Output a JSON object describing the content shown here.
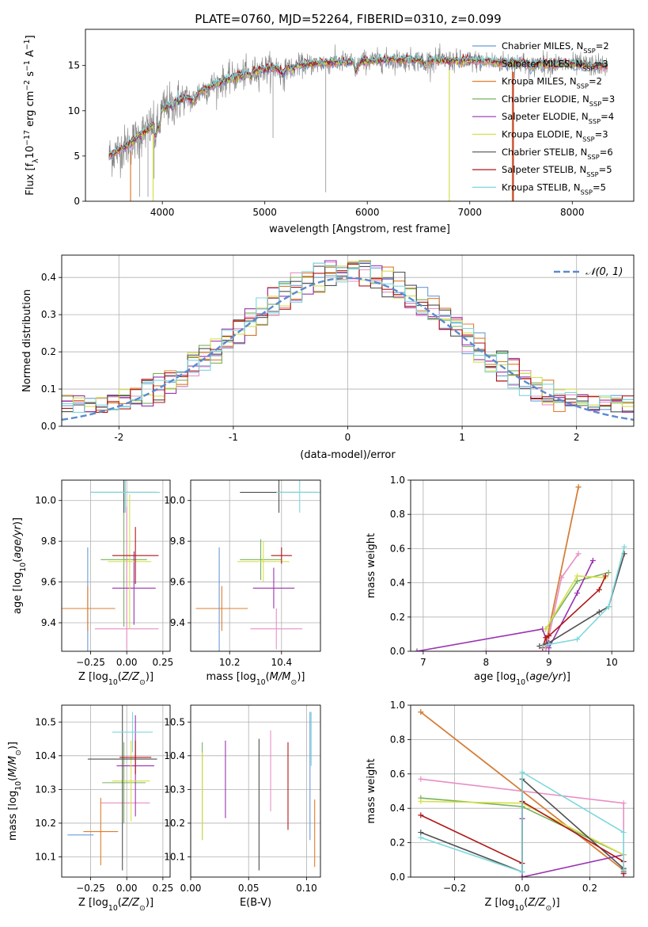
{
  "title": "PLATE=0760, MJD=52264, FIBERID=0310, z=0.099",
  "colors": {
    "Chabrier MILES": "#6a9bd8",
    "Salpeter MILES": "#e88fc4",
    "Kroupa MILES": "#e07c2a",
    "Chabrier ELODIE": "#7ab25c",
    "Salpeter ELODIE": "#9933b0",
    "Kroupa ELODIE": "#d6e04a",
    "Chabrier STELIB": "#505050",
    "Salpeter STELIB": "#b01717",
    "Kroupa STELIB": "#7dd8dc",
    "data": "#808080",
    "gauss": "#5b8ad0"
  },
  "chart_data": [
    {
      "id": "spectrum",
      "type": "line",
      "xlabel": "wavelength [Angstrom, rest frame]",
      "ylabel": "Flux [f_λ10^-17 erg cm^-2 s^-1 A^-1]",
      "xlim": [
        3250,
        8600
      ],
      "ylim": [
        0,
        19
      ],
      "xticks": [
        4000,
        5000,
        6000,
        7000,
        8000
      ],
      "yticks": [
        0,
        5,
        10,
        15
      ],
      "legend_position": "upper-right",
      "legend": [
        {
          "text": "Chabrier MILES, N",
          "sub": "SSP",
          "suffix": "=2"
        },
        {
          "text": "Salpeter MILES, N",
          "sub": "SSP",
          "suffix": "=3"
        },
        {
          "text": "Kroupa MILES, N",
          "sub": "SSP",
          "suffix": "=2"
        },
        {
          "text": "Chabrier ELODIE, N",
          "sub": "SSP",
          "suffix": "=3"
        },
        {
          "text": "Salpeter ELODIE, N",
          "sub": "SSP",
          "suffix": "=4"
        },
        {
          "text": "Kroupa ELODIE, N",
          "sub": "SSP",
          "suffix": "=3"
        },
        {
          "text": "Chabrier STELIB, N",
          "sub": "SSP",
          "suffix": "=6"
        },
        {
          "text": "Salpeter STELIB, N",
          "sub": "SSP",
          "suffix": "=5"
        },
        {
          "text": "Kroupa STELIB, N",
          "sub": "SSP",
          "suffix": "=5"
        }
      ],
      "continuum": {
        "x": [
          3480,
          3600,
          3700,
          3800,
          3900,
          4000,
          4100,
          4200,
          4300,
          4400,
          4500,
          4600,
          4800,
          5000,
          5200,
          5400,
          5600,
          5800,
          6000,
          6200,
          6400,
          6600,
          6800,
          7000,
          7200,
          7400,
          7600,
          7800,
          8000,
          8200,
          8350
        ],
        "y": [
          5.0,
          5.8,
          6.5,
          7.4,
          8.3,
          10.2,
          10.8,
          11.3,
          11.8,
          12.3,
          12.8,
          13.3,
          14.0,
          14.6,
          14.9,
          15.1,
          15.3,
          15.4,
          15.5,
          15.6,
          15.6,
          15.6,
          15.5,
          15.5,
          15.4,
          15.3,
          15.3,
          15.2,
          15.1,
          15.0,
          15.0
        ]
      }
    },
    {
      "id": "residuals",
      "type": "histogram",
      "xlabel": "(data-model)/error",
      "ylabel": "Normed distribution",
      "xlim": [
        -2.5,
        2.5
      ],
      "ylim": [
        0,
        0.46
      ],
      "xticks": [
        -2,
        -1,
        0,
        1,
        2
      ],
      "yticks": [
        0.0,
        0.1,
        0.2,
        0.3,
        0.4
      ],
      "legend": "𝒩(0, 1)",
      "legend_position": "upper-right",
      "bin_width": 0.1
    },
    {
      "id": "age-vs-Z",
      "type": "errorbar",
      "xlabel": "Z [log10(Z/Z⊙)]",
      "ylabel": "age  [log10(age/yr)]",
      "xlim": [
        -0.45,
        0.3
      ],
      "ylim": [
        9.26,
        10.1
      ],
      "xticks": [
        -0.25,
        0.0,
        0.25
      ],
      "yticks": [
        9.4,
        9.6,
        9.8,
        10.0
      ],
      "points": [
        {
          "model": "Chabrier MILES",
          "x": -0.27,
          "xerr": 0.12,
          "y": 9.47,
          "yerr": 0.3
        },
        {
          "model": "Salpeter MILES",
          "x": 0.0,
          "xerr": 0.22,
          "y": 9.37,
          "yerr": 0.6
        },
        {
          "model": "Kroupa MILES",
          "x": -0.27,
          "xerr": 0.19,
          "y": 9.47,
          "yerr": 0.11
        },
        {
          "model": "Chabrier ELODIE",
          "x": -0.02,
          "xerr": 0.16,
          "y": 9.71,
          "yerr": 0.33
        },
        {
          "model": "Salpeter ELODIE",
          "x": 0.05,
          "xerr": 0.15,
          "y": 9.57,
          "yerr": 0.18
        },
        {
          "model": "Kroupa ELODIE",
          "x": 0.02,
          "xerr": 0.15,
          "y": 9.7,
          "yerr": 0.33
        },
        {
          "model": "Chabrier STELIB",
          "x": -0.02,
          "xerr": 0.23,
          "y": 10.04,
          "yerr": 0.1
        },
        {
          "model": "Salpeter STELIB",
          "x": 0.06,
          "xerr": 0.16,
          "y": 9.73,
          "yerr": 0.14
        },
        {
          "model": "Kroupa STELIB",
          "x": -0.01,
          "xerr": 0.24,
          "y": 10.04,
          "yerr": 0.1
        }
      ]
    },
    {
      "id": "age-vs-mass",
      "type": "errorbar",
      "xlabel": "mass [log10(M/M⊙)]",
      "ylabel": "",
      "xlim": [
        10.05,
        10.55
      ],
      "ylim": [
        9.26,
        10.1
      ],
      "xticks": [
        10.2,
        10.4
      ],
      "yticks": [
        9.4,
        9.6,
        9.8,
        10.0
      ],
      "points": [
        {
          "model": "Chabrier MILES",
          "x": 10.16,
          "xerr": 0.08,
          "y": 9.47,
          "yerr": 0.3
        },
        {
          "model": "Salpeter MILES",
          "x": 10.38,
          "xerr": 0.1,
          "y": 9.37,
          "yerr": 0.1
        },
        {
          "model": "Kroupa MILES",
          "x": 10.17,
          "xerr": 0.1,
          "y": 9.47,
          "yerr": 0.11
        },
        {
          "model": "Chabrier ELODIE",
          "x": 10.32,
          "xerr": 0.08,
          "y": 9.71,
          "yerr": 0.1
        },
        {
          "model": "Salpeter ELODIE",
          "x": 10.37,
          "xerr": 0.08,
          "y": 9.57,
          "yerr": 0.1
        },
        {
          "model": "Kroupa ELODIE",
          "x": 10.33,
          "xerr": 0.1,
          "y": 9.7,
          "yerr": 0.1
        },
        {
          "model": "Chabrier STELIB",
          "x": 10.39,
          "xerr": 0.15,
          "y": 10.04,
          "yerr": 0.1
        },
        {
          "model": "Salpeter STELIB",
          "x": 10.4,
          "xerr": 0.04,
          "y": 9.73,
          "yerr": 0.04
        },
        {
          "model": "Kroupa STELIB",
          "x": 10.47,
          "xerr": 0.09,
          "y": 10.04,
          "yerr": 0.1
        }
      ]
    },
    {
      "id": "weight-vs-age",
      "type": "line",
      "xlabel": "age  [log10(age/yr)]",
      "ylabel": "mass weight",
      "xlim": [
        6.8,
        10.35
      ],
      "ylim": [
        0,
        1
      ],
      "xticks": [
        7,
        8,
        9,
        10
      ],
      "yticks": [
        0.0,
        0.2,
        0.4,
        0.6,
        0.8,
        1.0
      ],
      "series": [
        {
          "model": "Chabrier MILES",
          "x": [
            8.95,
            9.47
          ],
          "y": [
            0.04,
            0.96
          ]
        },
        {
          "model": "Salpeter MILES",
          "x": [
            8.0,
            8.95,
            9.2,
            9.47
          ],
          "y": [
            0.0,
            0.0,
            0.43,
            0.57
          ]
        },
        {
          "model": "Kroupa MILES",
          "x": [
            8.95,
            9.47
          ],
          "y": [
            0.04,
            0.96
          ]
        },
        {
          "model": "Chabrier ELODIE",
          "x": [
            8.95,
            9.45,
            9.95
          ],
          "y": [
            0.13,
            0.41,
            0.46
          ]
        },
        {
          "model": "Salpeter ELODIE",
          "x": [
            6.9,
            8.9,
            9.0,
            9.45,
            9.7
          ],
          "y": [
            0.0,
            0.13,
            0.02,
            0.34,
            0.53
          ]
        },
        {
          "model": "Kroupa ELODIE",
          "x": [
            8.95,
            9.45,
            9.9
          ],
          "y": [
            0.13,
            0.44,
            0.43
          ]
        },
        {
          "model": "Chabrier STELIB",
          "x": [
            8.85,
            9.0,
            9.8,
            9.95,
            10.2
          ],
          "y": [
            0.03,
            0.05,
            0.23,
            0.26,
            0.57
          ]
        },
        {
          "model": "Salpeter STELIB",
          "x": [
            8.9,
            8.95,
            9.0,
            9.8,
            9.9
          ],
          "y": [
            0.02,
            0.08,
            0.09,
            0.36,
            0.44
          ]
        },
        {
          "model": "Kroupa STELIB",
          "x": [
            8.9,
            9.0,
            9.45,
            9.95,
            10.2
          ],
          "y": [
            0.03,
            0.04,
            0.07,
            0.26,
            0.61
          ]
        }
      ]
    },
    {
      "id": "mass-vs-Z",
      "type": "errorbar",
      "xlabel": "Z [log10(Z/Z⊙)]",
      "ylabel": "mass [log10(M/M⊙)]",
      "xlim": [
        -0.45,
        0.3
      ],
      "ylim": [
        10.04,
        10.55
      ],
      "xticks": [
        -0.25,
        0.0,
        0.25
      ],
      "yticks": [
        10.1,
        10.2,
        10.3,
        10.4,
        10.5
      ],
      "points": [
        {
          "model": "Chabrier MILES",
          "x": -0.32,
          "xerr": 0.09,
          "y": 10.165,
          "yerr": 0.0
        },
        {
          "model": "Salpeter MILES",
          "x": -0.01,
          "xerr": 0.17,
          "y": 10.26,
          "yerr": 0.0
        },
        {
          "model": "Kroupa MILES",
          "x": -0.18,
          "xerr": 0.12,
          "y": 10.175,
          "yerr": 0.1
        },
        {
          "model": "Chabrier ELODIE",
          "x": -0.02,
          "xerr": 0.15,
          "y": 10.32,
          "yerr": 0.12
        },
        {
          "model": "Salpeter ELODIE",
          "x": 0.06,
          "xerr": 0.13,
          "y": 10.37,
          "yerr": 0.15
        },
        {
          "model": "Kroupa ELODIE",
          "x": 0.03,
          "xerr": 0.13,
          "y": 10.325,
          "yerr": 0.12
        },
        {
          "model": "Chabrier STELIB",
          "x": -0.03,
          "xerr": 0.24,
          "y": 10.39,
          "yerr": 0.33
        },
        {
          "model": "Salpeter STELIB",
          "x": 0.06,
          "xerr": 0.11,
          "y": 10.395,
          "yerr": 0.05
        },
        {
          "model": "Kroupa STELIB",
          "x": 0.04,
          "xerr": 0.14,
          "y": 10.47,
          "yerr": 0.06
        }
      ]
    },
    {
      "id": "mass-vs-EBV",
      "type": "errorbar",
      "xlabel": "E(B-V)",
      "ylabel": "",
      "xlim": [
        0.0,
        0.112
      ],
      "ylim": [
        10.04,
        10.55
      ],
      "xticks": [
        0.0,
        0.05,
        0.1
      ],
      "yticks": [
        10.1,
        10.2,
        10.3,
        10.4,
        10.5
      ],
      "points": [
        {
          "model": "Chabrier MILES",
          "x": 0.103,
          "xerr": 0.0,
          "y": 10.34,
          "yerr": 0.19
        },
        {
          "model": "Salpeter MILES",
          "x": 0.069,
          "xerr": 0.0,
          "y": 10.355,
          "yerr": 0.12
        },
        {
          "model": "Kroupa MILES",
          "x": 0.107,
          "xerr": 0.0,
          "y": 10.17,
          "yerr": 0.1
        },
        {
          "model": "Chabrier ELODIE",
          "x": 0.01,
          "xerr": 0.0,
          "y": 10.295,
          "yerr": 0.145
        },
        {
          "model": "Salpeter ELODIE",
          "x": 0.03,
          "xerr": 0.0,
          "y": 10.33,
          "yerr": 0.115
        },
        {
          "model": "Kroupa ELODIE",
          "x": 0.01,
          "xerr": 0.0,
          "y": 10.28,
          "yerr": 0.13
        },
        {
          "model": "Chabrier STELIB",
          "x": 0.059,
          "xerr": 0.0,
          "y": 10.255,
          "yerr": 0.195
        },
        {
          "model": "Salpeter STELIB",
          "x": 0.084,
          "xerr": 0.0,
          "y": 10.31,
          "yerr": 0.13
        },
        {
          "model": "Kroupa STELIB",
          "x": 0.104,
          "xerr": 0.0,
          "y": 10.45,
          "yerr": 0.08
        }
      ]
    },
    {
      "id": "weight-vs-Z",
      "type": "line",
      "xlabel": "Z [log10(Z/Z⊙)]",
      "ylabel": "mass weight",
      "xlim": [
        -0.33,
        0.33
      ],
      "ylim": [
        0,
        1
      ],
      "xticks": [
        -0.2,
        0.0,
        0.2
      ],
      "yticks": [
        0.0,
        0.2,
        0.4,
        0.6,
        0.8,
        1.0
      ],
      "series": [
        {
          "model": "Chabrier MILES",
          "x": [
            -0.3,
            0.3
          ],
          "y": [
            0.96,
            0.04
          ]
        },
        {
          "model": "Salpeter MILES",
          "x": [
            -0.3,
            0.0,
            0.3,
            0.3
          ],
          "y": [
            0.57,
            0.5,
            0.43,
            0.0
          ]
        },
        {
          "model": "Kroupa MILES",
          "x": [
            -0.3,
            0.3
          ],
          "y": [
            0.96,
            0.04
          ]
        },
        {
          "model": "Chabrier ELODIE",
          "x": [
            -0.3,
            0.0,
            0.3
          ],
          "y": [
            0.46,
            0.41,
            0.13
          ]
        },
        {
          "model": "Salpeter ELODIE",
          "x": [
            0.0,
            0.0,
            0.3
          ],
          "y": [
            0.34,
            0.0,
            0.13
          ]
        },
        {
          "model": "Kroupa ELODIE",
          "x": [
            -0.3,
            0.0,
            0.3
          ],
          "y": [
            0.44,
            0.43,
            0.13
          ]
        },
        {
          "model": "Chabrier STELIB",
          "x": [
            -0.3,
            0.0,
            0.0,
            0.3,
            0.3
          ],
          "y": [
            0.26,
            0.03,
            0.57,
            0.05,
            0.03
          ]
        },
        {
          "model": "Salpeter STELIB",
          "x": [
            -0.3,
            0.0,
            0.0,
            0.3,
            0.3
          ],
          "y": [
            0.36,
            0.08,
            0.44,
            0.09,
            0.02
          ]
        },
        {
          "model": "Kroupa STELIB",
          "x": [
            -0.3,
            0.0,
            0.0,
            0.3,
            0.3
          ],
          "y": [
            0.23,
            0.03,
            0.61,
            0.26,
            0.04
          ]
        }
      ]
    }
  ]
}
